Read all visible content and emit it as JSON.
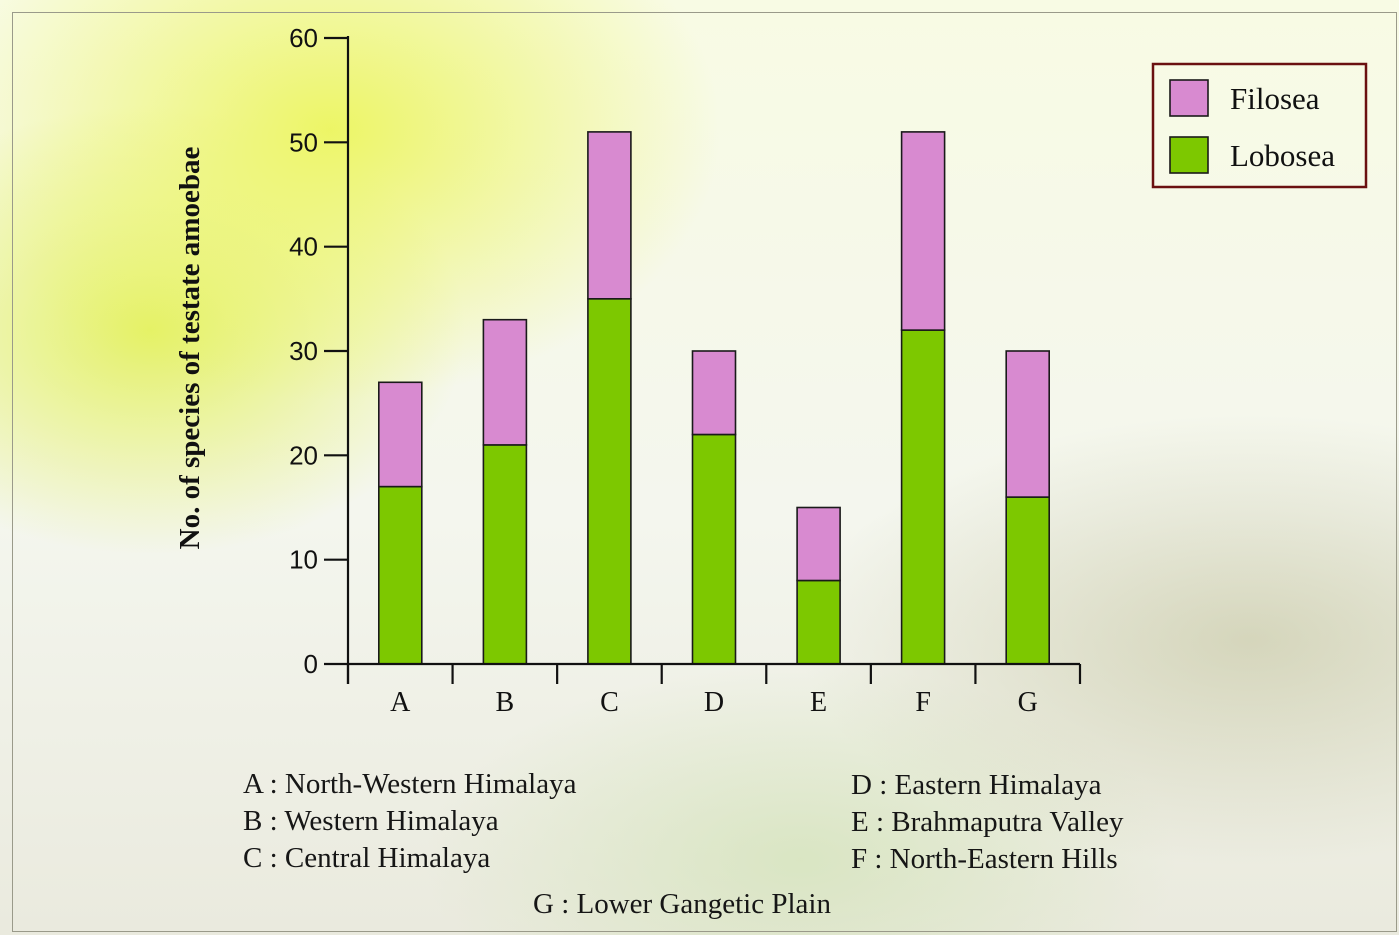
{
  "chart_data": {
    "type": "bar",
    "stacked": true,
    "categories": [
      "A",
      "B",
      "C",
      "D",
      "E",
      "F",
      "G"
    ],
    "series": [
      {
        "name": "Lobosea",
        "values": [
          17,
          21,
          35,
          22,
          8,
          32,
          16
        ],
        "color": "#7dc800"
      },
      {
        "name": "Filosea",
        "values": [
          10,
          12,
          16,
          8,
          7,
          19,
          14
        ],
        "color": "#d88ad0"
      }
    ],
    "totals": [
      27,
      33,
      51,
      30,
      15,
      51,
      30
    ],
    "ylabel": "No. of species of testate amoebae",
    "xlabel": "",
    "ylim": [
      0,
      60
    ],
    "yticks": [
      0,
      10,
      20,
      30,
      40,
      50,
      60
    ],
    "grid": false,
    "legend": {
      "position": "top-right",
      "order": [
        "Filosea",
        "Lobosea"
      ],
      "border_color": "#6a1010"
    },
    "category_notes": [
      "A : North-Western Himalaya",
      "B : Western Himalaya",
      "C : Central Himalaya",
      "D : Eastern Himalaya",
      "E : Brahmaputra Valley",
      "F : North-Eastern Hills",
      "G : Lower Gangetic Plain"
    ]
  }
}
